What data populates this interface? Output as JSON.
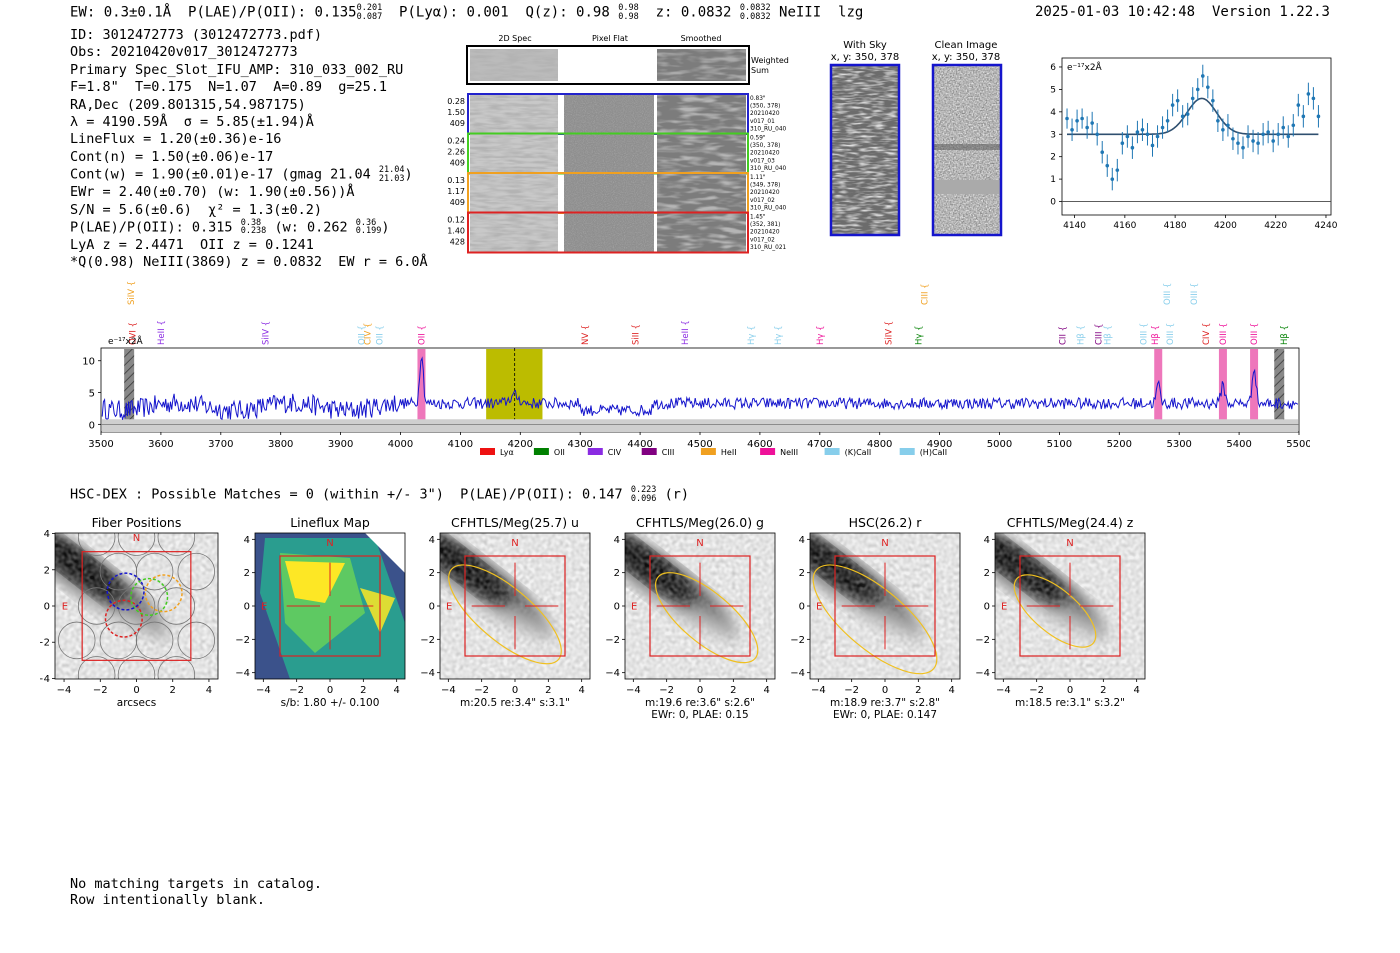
{
  "header": {
    "ew": "EW: 0.3±0.1Å",
    "plae_label": "P(LAE)/P(OII): 0.135",
    "plae_hi": "0.201",
    "plae_lo": "0.087",
    "plya": "P(Lyα): 0.001",
    "qz_label": "Q(z): 0.98",
    "qz_hi": "0.98",
    "qz_lo": "0.98",
    "z_label": "z: 0.0832",
    "z_hi": "0.0832",
    "z_lo": "0.0832",
    "line": "NeIII",
    "tag": "lzg",
    "datetime": "2025-01-03 10:42:48",
    "version": "Version 1.22.3"
  },
  "info": {
    "id": "ID: 3012472773 (3012472773.pdf)",
    "obs": "Obs: 20210420v017_3012472773",
    "primary": "Primary Spec_Slot_IFU_AMP: 310_033_002_RU",
    "fwhm": "F=1.8\"  T=0.175  N=1.07  A=0.89  g=25.1",
    "radec": "RA,Dec (209.801315,54.987175)",
    "lambda": "λ = 4190.59Å  σ = 5.85(±1.94)Å",
    "lineflux": "LineFlux = 1.20(±0.36)e-16",
    "contn": "Cont(n) = 1.50(±0.06)e-17",
    "contw": "Cont(w) = 1.90(±0.01)e-17 (gmag 21.04",
    "gmag_hi": "21.04",
    "gmag_lo": "21.03",
    "ewr": "EWr = 2.40(±0.70) (w: 1.90(±0.56))Å",
    "sn": "S/N = 5.6(±0.6)  χ² = 1.3(±0.2)",
    "plae": "P(LAE)/P(OII): 0.315",
    "plae_hi": "0.38",
    "plae_lo": "0.238",
    "plae_w": "(w: 0.262",
    "plae_w_hi": "0.36",
    "plae_w_lo": "0.199",
    "lya": "LyA z = 2.4471  OII z = 0.1241",
    "q": "*Q(0.98) NeIII(3869) z = 0.0832  EW r = 6.0Å"
  },
  "cutouts": {
    "col_2d": "2D Spec",
    "col_flat": "Pixel Flat",
    "col_smooth": "Smoothed",
    "weighted": "Weighted",
    "sum": "Sum",
    "rows": [
      {
        "left": [
          "0.28",
          "1.50",
          "409"
        ],
        "right": [
          "0.83\"",
          "(350, 378)",
          "20210420",
          "v017_01",
          "310_RU_040"
        ],
        "color": "#2222cc"
      },
      {
        "left": [
          "0.24",
          "2.26",
          "409"
        ],
        "right": [
          "0.59\"",
          "(350, 378)",
          "20210420",
          "v017_03",
          "310_RU_040"
        ],
        "color": "#44cc22"
      },
      {
        "left": [
          "0.13",
          "1.17",
          "409"
        ],
        "right": [
          "1.11\"",
          "(349, 378)",
          "20210420",
          "v017_02",
          "310_RU_040"
        ],
        "color": "#f0a020"
      },
      {
        "left": [
          "0.12",
          "1.40",
          "428"
        ],
        "right": [
          "1.45\"",
          "(352, 381)",
          "20210420",
          "v017_02",
          "310_RU_021"
        ],
        "color": "#dd2222"
      }
    ]
  },
  "sky": {
    "with_title": "With Sky",
    "with_coords": "x, y: 350, 378",
    "clean_title": "Clean Image",
    "clean_coords": "x, y: 350, 378"
  },
  "zoom_chart": {
    "type": "scatter",
    "unit": "e⁻¹⁷x2Å",
    "xlim": [
      4135,
      4242
    ],
    "ylim": [
      -0.6,
      6.4
    ],
    "xticks": [
      "4140",
      "4160",
      "4180",
      "4200",
      "4220",
      "4240"
    ],
    "yticks": [
      "0",
      "1",
      "2",
      "3",
      "4",
      "5",
      "6"
    ],
    "x": [
      4137,
      4139,
      4141,
      4143,
      4145,
      4147,
      4149,
      4151,
      4153,
      4155,
      4157,
      4159,
      4161,
      4163,
      4165,
      4167,
      4169,
      4171,
      4173,
      4175,
      4177,
      4179,
      4181,
      4183,
      4185,
      4187,
      4189,
      4191,
      4193,
      4195,
      4197,
      4199,
      4201,
      4203,
      4205,
      4207,
      4209,
      4211,
      4213,
      4215,
      4217,
      4219,
      4221,
      4223,
      4225,
      4227,
      4229,
      4231,
      4233,
      4235,
      4237
    ],
    "y": [
      3.7,
      3.2,
      3.6,
      3.7,
      3.3,
      3.5,
      3.0,
      2.2,
      1.6,
      1.0,
      1.4,
      2.6,
      2.9,
      2.4,
      3.1,
      3.2,
      3.0,
      2.5,
      2.9,
      3.3,
      3.6,
      4.3,
      4.5,
      3.8,
      3.9,
      4.6,
      5.0,
      5.6,
      5.1,
      4.5,
      3.6,
      3.2,
      3.4,
      2.8,
      2.6,
      2.4,
      2.9,
      2.7,
      2.6,
      3.0,
      3.1,
      2.7,
      3.0,
      3.3,
      2.9,
      3.4,
      4.3,
      3.8,
      4.8,
      4.6,
      3.8
    ],
    "err": [
      0.45,
      0.5,
      0.5,
      0.45,
      0.5,
      0.5,
      0.5,
      0.5,
      0.5,
      0.5,
      0.5,
      0.5,
      0.5,
      0.5,
      0.5,
      0.5,
      0.5,
      0.5,
      0.5,
      0.5,
      0.5,
      0.5,
      0.5,
      0.5,
      0.5,
      0.5,
      0.5,
      0.5,
      0.5,
      0.5,
      0.5,
      0.5,
      0.5,
      0.5,
      0.5,
      0.5,
      0.5,
      0.5,
      0.5,
      0.5,
      0.5,
      0.5,
      0.5,
      0.5,
      0.5,
      0.5,
      0.5,
      0.5,
      0.5,
      0.5,
      0.5
    ],
    "fit": {
      "continuum": 3.0,
      "amplitude": 1.6,
      "center": 4190.6,
      "sigma": 5.85
    }
  },
  "spectrum": {
    "type": "line",
    "unit": "e⁻¹⁷x2Å",
    "xlim": [
      3500,
      5500
    ],
    "ylim": [
      -1.2,
      12
    ],
    "xticks": [
      "3500",
      "3600",
      "3700",
      "3800",
      "3900",
      "4000",
      "4100",
      "4200",
      "4300",
      "4400",
      "4500",
      "4600",
      "4700",
      "4800",
      "4900",
      "5000",
      "5100",
      "5200",
      "5300",
      "5400",
      "5500"
    ],
    "yticks": [
      "0",
      "5",
      "10"
    ],
    "highlight": {
      "x0": 4143,
      "x1": 4237,
      "center": 4190.6
    },
    "emission_bands": [
      4035,
      5265,
      5373,
      5425
    ],
    "masked_bands": [
      3547,
      5467
    ],
    "line_labels": [
      {
        "x": 3550,
        "text": "SiIV",
        "color": "#f0a020",
        "row": 0
      },
      {
        "x": 3553,
        "text": "OVI",
        "color": "#dd2222",
        "row": 1
      },
      {
        "x": 3600,
        "text": "HeII",
        "color": "#8a2be2",
        "row": 1
      },
      {
        "x": 3775,
        "text": "SiIV",
        "color": "#8a2be2",
        "row": 1
      },
      {
        "x": 3935,
        "text": "OII",
        "color": "#87ceeb",
        "row": 1
      },
      {
        "x": 3945,
        "text": "CIV",
        "color": "#f0a020",
        "row": 1
      },
      {
        "x": 3965,
        "text": "OII",
        "color": "#87ceeb",
        "row": 1
      },
      {
        "x": 4035,
        "text": "OII",
        "color": "#ee1199",
        "row": 1
      },
      {
        "x": 4308,
        "text": "NV",
        "color": "#dd2222",
        "row": 1
      },
      {
        "x": 4392,
        "text": "SiII",
        "color": "#dd2222",
        "row": 1
      },
      {
        "x": 4475,
        "text": "HeII",
        "color": "#8a2be2",
        "row": 1
      },
      {
        "x": 4585,
        "text": "Hγ",
        "color": "#87ceeb",
        "row": 1
      },
      {
        "x": 4630,
        "text": "Hγ",
        "color": "#87ceeb",
        "row": 1
      },
      {
        "x": 4700,
        "text": "Hγ",
        "color": "#ee1199",
        "row": 1
      },
      {
        "x": 4815,
        "text": "SiIV",
        "color": "#dd2222",
        "row": 1
      },
      {
        "x": 4865,
        "text": "Hγ",
        "color": "#008000",
        "row": 1
      },
      {
        "x": 4875,
        "text": "CIII",
        "color": "#f0a020",
        "row": 0
      },
      {
        "x": 5105,
        "text": "CII",
        "color": "#800080",
        "row": 1
      },
      {
        "x": 5135,
        "text": "Hβ",
        "color": "#87ceeb",
        "row": 1
      },
      {
        "x": 5165,
        "text": "CIII",
        "color": "#800080",
        "row": 1
      },
      {
        "x": 5180,
        "text": "Hβ",
        "color": "#87ceeb",
        "row": 1
      },
      {
        "x": 5240,
        "text": "OIII",
        "color": "#87ceeb",
        "row": 1
      },
      {
        "x": 5260,
        "text": "Hβ",
        "color": "#ee1199",
        "row": 1
      },
      {
        "x": 5280,
        "text": "OIII",
        "color": "#87ceeb",
        "row": 0
      },
      {
        "x": 5285,
        "text": "OIII",
        "color": "#87ceeb",
        "row": 1
      },
      {
        "x": 5325,
        "text": "OIII",
        "color": "#87ceeb",
        "row": 0
      },
      {
        "x": 5345,
        "text": "CIV",
        "color": "#dd2222",
        "row": 1
      },
      {
        "x": 5373,
        "text": "OIII",
        "color": "#ee1199",
        "row": 1
      },
      {
        "x": 5425,
        "text": "OIII",
        "color": "#ee1199",
        "row": 1
      },
      {
        "x": 5475,
        "text": "Hβ",
        "color": "#008000",
        "row": 1
      }
    ],
    "legend": [
      {
        "label": "Lyα",
        "color": "#ee1111"
      },
      {
        "label": "OII",
        "color": "#008000"
      },
      {
        "label": "CIV",
        "color": "#8a2be2"
      },
      {
        "label": "CIII",
        "color": "#800080"
      },
      {
        "label": "HeII",
        "color": "#f0a020"
      },
      {
        "label": "NeIII",
        "color": "#ee1199"
      },
      {
        "label": "(K)CaII",
        "color": "#87ceeb"
      },
      {
        "label": "(H)CaII",
        "color": "#87ceeb"
      }
    ]
  },
  "hsc": {
    "line": "HSC-DEX : Possible Matches = 0 (within +/- 3\")  P(LAE)/P(OII): 0.147",
    "hi": "0.223",
    "lo": "0.096",
    "band": "(r)"
  },
  "stamps": {
    "ticks": [
      "−4",
      "−2",
      "0",
      "2",
      "4"
    ],
    "north": "N",
    "east": "E",
    "panels": [
      {
        "title": "Fiber Positions",
        "cap1": "arcsecs",
        "cap2": ""
      },
      {
        "title": "Lineflux Map",
        "cap1": "s/b: 1.80 +/- 0.100",
        "cap2": ""
      },
      {
        "title": "CFHTLS/Meg(25.7) u",
        "cap1": "m:20.5  re:3.4\"  s:3.1\"",
        "cap2": ""
      },
      {
        "title": "CFHTLS/Meg(26.0) g",
        "cap1": "m:19.6  re:3.6\"  s:2.6\"",
        "cap2": "EWr: 0, PLAE: 0.15"
      },
      {
        "title": "HSC(26.2) r",
        "cap1": "m:18.9  re:3.7\"  s:2.8\"",
        "cap2": "EWr: 0, PLAE: 0.147"
      },
      {
        "title": "CFHTLS/Meg(24.4) z",
        "cap1": "m:18.5  re:3.1\"  s:3.2\"",
        "cap2": ""
      }
    ]
  },
  "footer": {
    "line1": "No matching targets in catalog.",
    "line2": "Row intentionally blank."
  }
}
